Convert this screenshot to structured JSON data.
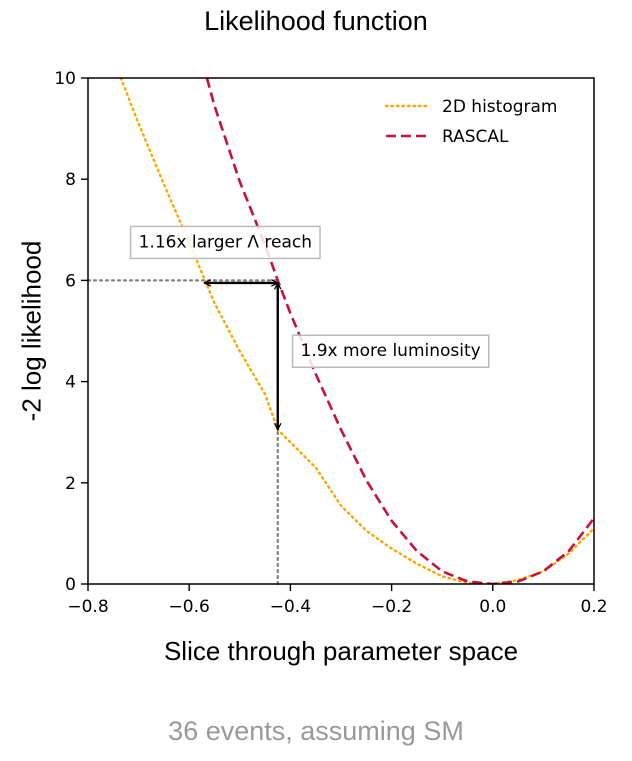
{
  "chart_data": {
    "type": "line",
    "title": "Likelihood function",
    "xlabel": "Slice through parameter space",
    "ylabel": "-2 log likelihood",
    "footnote": "36 events,  assuming SM",
    "xlim": [
      -0.8,
      0.2
    ],
    "ylim": [
      0,
      10
    ],
    "xticks": [
      -0.8,
      -0.6,
      -0.4,
      -0.2,
      0.0,
      0.2
    ],
    "xtick_labels": [
      "−0.8",
      "−0.6",
      "−0.4",
      "−0.2",
      "0.0",
      "0.2"
    ],
    "yticks": [
      0,
      2,
      4,
      6,
      8,
      10
    ],
    "ytick_labels": [
      "0",
      "2",
      "4",
      "6",
      "8",
      "10"
    ],
    "grid": false,
    "legend_position": "top-right",
    "series": [
      {
        "name": "2D histogram",
        "style": "dotted",
        "color": "#FFA500",
        "x": [
          -0.735,
          -0.7,
          -0.65,
          -0.6,
          -0.55,
          -0.5,
          -0.45,
          -0.425,
          -0.4,
          -0.35,
          -0.3,
          -0.25,
          -0.2,
          -0.15,
          -0.1,
          -0.05,
          0.0,
          0.05,
          0.1,
          0.15,
          0.2
        ],
        "y": [
          10.0,
          9.1,
          7.9,
          6.75,
          5.55,
          4.6,
          3.75,
          3.05,
          2.8,
          2.3,
          1.55,
          1.05,
          0.7,
          0.4,
          0.15,
          0.02,
          0.0,
          0.08,
          0.25,
          0.6,
          1.1
        ]
      },
      {
        "name": "RASCAL",
        "style": "dashed",
        "color": "#C8103C",
        "x": [
          -0.565,
          -0.55,
          -0.5,
          -0.45,
          -0.425,
          -0.4,
          -0.35,
          -0.3,
          -0.25,
          -0.2,
          -0.15,
          -0.1,
          -0.05,
          0.0,
          0.05,
          0.1,
          0.15,
          0.2
        ],
        "y": [
          10.0,
          9.45,
          7.95,
          6.7,
          6.0,
          5.35,
          4.15,
          3.05,
          2.05,
          1.25,
          0.65,
          0.25,
          0.05,
          0.0,
          0.05,
          0.25,
          0.65,
          1.3
        ]
      }
    ],
    "reference_lines": [
      {
        "style": "dotted",
        "color": "#808080",
        "from": [
          -0.8,
          6.0
        ],
        "to": [
          -0.425,
          6.0
        ]
      },
      {
        "style": "dotted",
        "color": "#808080",
        "from": [
          -0.425,
          0.0
        ],
        "to": [
          -0.425,
          3.05
        ]
      }
    ],
    "arrows": [
      {
        "from": [
          -0.425,
          5.95
        ],
        "to": [
          -0.57,
          5.95
        ],
        "double": true
      },
      {
        "from": [
          -0.425,
          5.95
        ],
        "to": [
          -0.425,
          3.05
        ],
        "double": true
      }
    ],
    "annotations": [
      {
        "text": "1.16x larger Λ reach",
        "x": -0.7,
        "y": 6.75
      },
      {
        "text": "1.9x more luminosity",
        "x": -0.38,
        "y": 4.6
      }
    ]
  }
}
